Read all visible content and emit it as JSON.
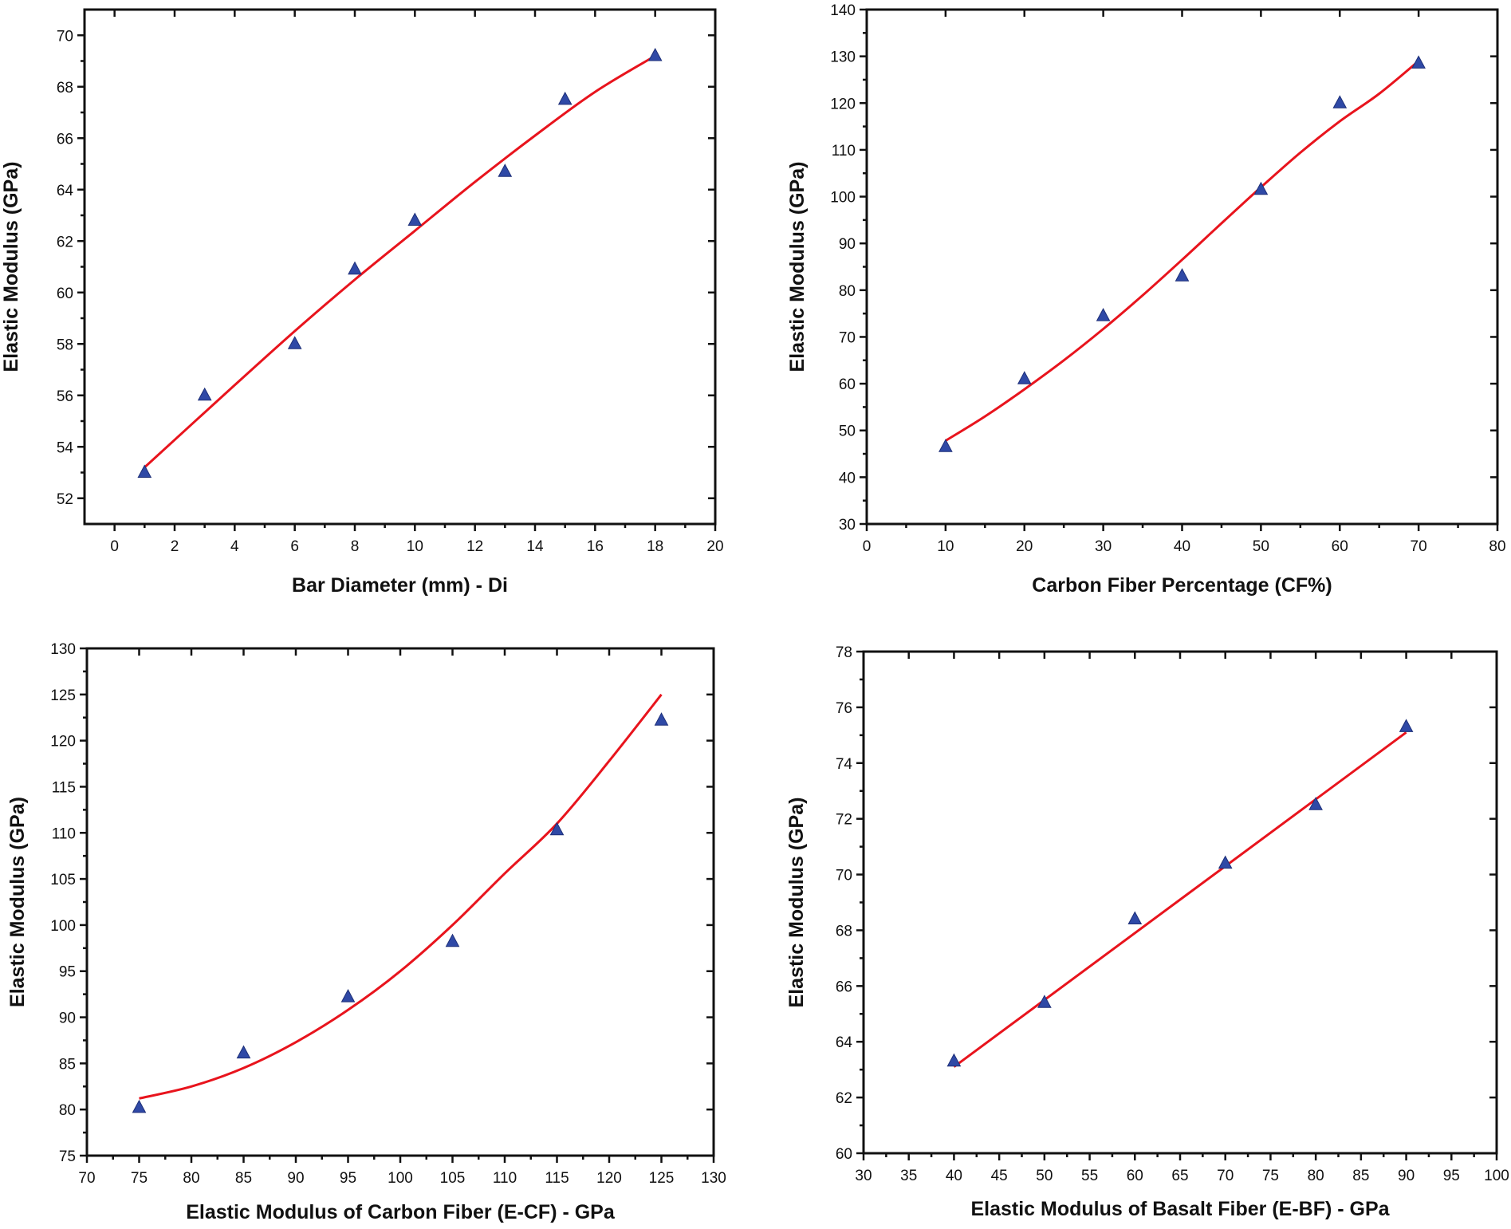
{
  "chart_data": [
    {
      "id": "panel-a",
      "type": "scatter",
      "xlabel": "Bar Diameter (mm) - Di",
      "ylabel": "Elastic Modulus (GPa)",
      "xlim": [
        -1,
        20
      ],
      "ylim": [
        51,
        71
      ],
      "xticks": [
        0,
        2,
        4,
        6,
        8,
        10,
        12,
        14,
        16,
        18,
        20
      ],
      "yticks": [
        52,
        54,
        56,
        58,
        60,
        62,
        64,
        66,
        68,
        70
      ],
      "xticklabels": [
        "0",
        "2",
        "4",
        "6",
        "8",
        "10",
        "12",
        "14",
        "16",
        "18",
        "20"
      ],
      "yticklabels": [
        "52",
        "54",
        "56",
        "58",
        "60",
        "62",
        "64",
        "66",
        "68",
        "70"
      ],
      "grid": false,
      "series": [
        {
          "marker": "triangle",
          "color": "#2f49a6",
          "x": [
            1,
            3,
            6,
            8,
            10,
            13,
            15,
            18
          ],
          "y": [
            53.0,
            56.0,
            58.0,
            60.9,
            62.8,
            64.7,
            67.5,
            69.2
          ]
        },
        {
          "marker": "line",
          "color": "#e8141d",
          "x": [
            1,
            4,
            6,
            8,
            10,
            12,
            14,
            16,
            18
          ],
          "y": [
            53.2,
            56.4,
            58.5,
            60.5,
            62.4,
            64.3,
            66.1,
            67.8,
            69.2
          ]
        }
      ]
    },
    {
      "id": "panel-b",
      "type": "scatter",
      "xlabel": "Carbon Fiber Percentage (CF%)",
      "ylabel": "Elastic Modulus (GPa)",
      "xlim": [
        0,
        80
      ],
      "ylim": [
        30,
        140
      ],
      "xticks": [
        0,
        10,
        20,
        30,
        40,
        50,
        60,
        70,
        80
      ],
      "yticks": [
        30,
        40,
        50,
        60,
        70,
        80,
        90,
        100,
        110,
        120,
        130,
        140
      ],
      "xticklabels": [
        "0",
        "10",
        "20",
        "30",
        "40",
        "50",
        "60",
        "70",
        "80"
      ],
      "yticklabels": [
        "30",
        "40",
        "50",
        "60",
        "70",
        "80",
        "90",
        "100",
        "110",
        "120",
        "130",
        "140"
      ],
      "grid": false,
      "series": [
        {
          "marker": "triangle",
          "color": "#2f49a6",
          "x": [
            10,
            20,
            30,
            40,
            50,
            60,
            70
          ],
          "y": [
            46.5,
            61.0,
            74.5,
            83.0,
            101.5,
            120.0,
            128.5
          ]
        },
        {
          "marker": "line",
          "color": "#e8141d",
          "x": [
            10,
            15,
            20,
            25,
            30,
            35,
            40,
            45,
            50,
            55,
            60,
            65,
            70
          ],
          "y": [
            47.8,
            53.0,
            58.8,
            65.0,
            71.7,
            78.9,
            86.5,
            94.3,
            102.0,
            109.4,
            116.1,
            122.0,
            129.0
          ]
        }
      ]
    },
    {
      "id": "panel-c",
      "type": "scatter",
      "xlabel": "Elastic Modulus of Carbon Fiber (E-CF) - GPa",
      "ylabel": "Elastic Modulus (GPa)",
      "xlim": [
        70,
        130
      ],
      "ylim": [
        75,
        130
      ],
      "xticks": [
        70,
        75,
        80,
        85,
        90,
        95,
        100,
        105,
        110,
        115,
        120,
        125,
        130
      ],
      "yticks": [
        75,
        80,
        85,
        90,
        95,
        100,
        105,
        110,
        115,
        120,
        125,
        130
      ],
      "xticklabels": [
        "70",
        "75",
        "80",
        "85",
        "90",
        "95",
        "100",
        "105",
        "110",
        "115",
        "120",
        "125",
        "130"
      ],
      "yticklabels": [
        "75",
        "80",
        "85",
        "90",
        "95",
        "100",
        "105",
        "110",
        "115",
        "120",
        "125",
        "130"
      ],
      "grid": false,
      "series": [
        {
          "marker": "triangle",
          "color": "#2f49a6",
          "x": [
            75,
            85,
            95,
            105,
            115,
            125
          ],
          "y": [
            80.2,
            86.1,
            92.2,
            98.2,
            110.3,
            122.2
          ]
        },
        {
          "marker": "line",
          "color": "#e8141d",
          "x": [
            75,
            80,
            85,
            90,
            95,
            100,
            105,
            110,
            115,
            120,
            125
          ],
          "y": [
            81.2,
            82.5,
            84.5,
            87.3,
            90.8,
            95.0,
            100.0,
            105.6,
            111.0,
            117.8,
            125.0
          ]
        }
      ]
    },
    {
      "id": "panel-d",
      "type": "scatter",
      "xlabel": "Elastic Modulus of Basalt Fiber (E-BF) - GPa",
      "ylabel": "Elastic Modulus (GPa)",
      "xlim": [
        30,
        100
      ],
      "ylim": [
        60,
        78
      ],
      "xticks": [
        30,
        35,
        40,
        45,
        50,
        55,
        60,
        65,
        70,
        75,
        80,
        85,
        90,
        95,
        100
      ],
      "yticks": [
        60,
        62,
        64,
        66,
        68,
        70,
        72,
        74,
        76,
        78
      ],
      "xticklabels": [
        "30",
        "35",
        "40",
        "45",
        "50",
        "55",
        "60",
        "65",
        "70",
        "75",
        "80",
        "85",
        "90",
        "95",
        "100"
      ],
      "yticklabels": [
        "60",
        "62",
        "64",
        "66",
        "68",
        "70",
        "72",
        "74",
        "76",
        "78"
      ],
      "grid": false,
      "series": [
        {
          "marker": "triangle",
          "color": "#2f49a6",
          "x": [
            40,
            50,
            60,
            70,
            80,
            90
          ],
          "y": [
            63.3,
            65.4,
            68.4,
            70.4,
            72.5,
            75.3
          ]
        },
        {
          "marker": "line",
          "color": "#e8141d",
          "x": [
            40,
            90
          ],
          "y": [
            63.1,
            75.1
          ]
        }
      ]
    }
  ]
}
